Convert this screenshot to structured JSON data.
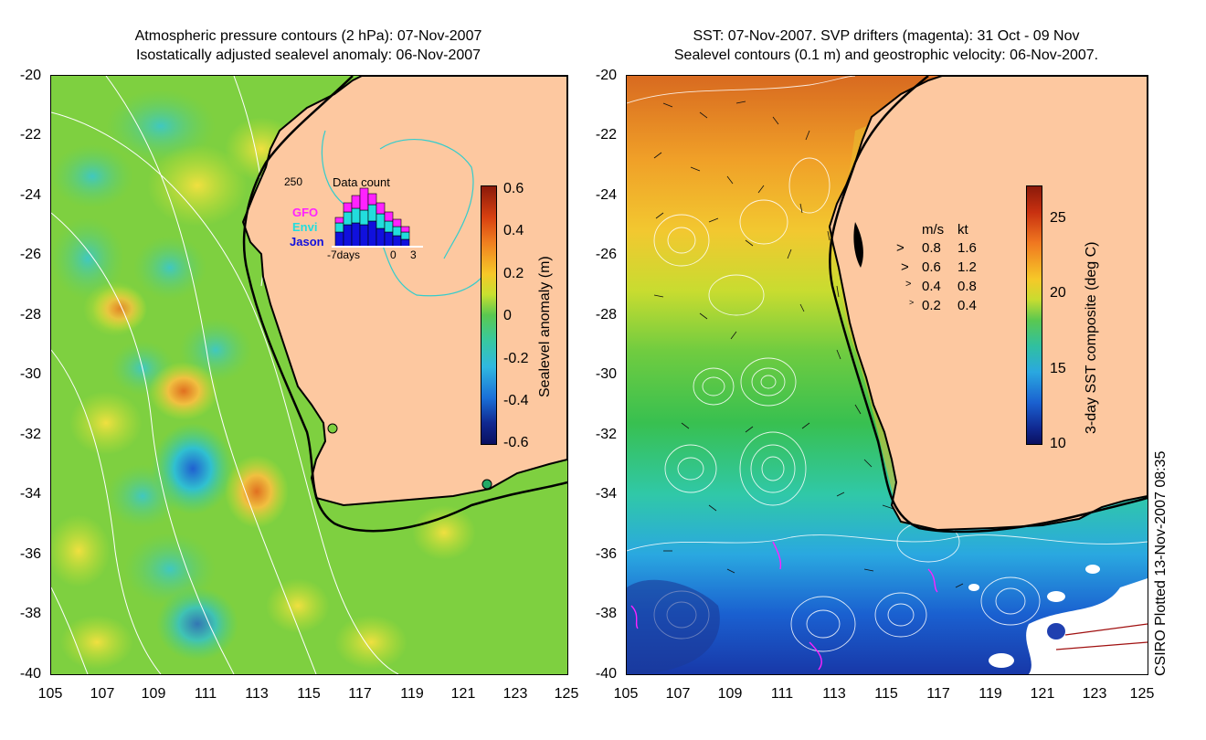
{
  "left": {
    "title_line1": "Atmospheric pressure contours (2 hPa): 07-Nov-2007",
    "title_line2": "Isostatically adjusted sealevel anomaly: 06-Nov-2007",
    "y_ticks": [
      "-20",
      "-22",
      "-24",
      "-26",
      "-28",
      "-30",
      "-32",
      "-34",
      "-36",
      "-38",
      "-40"
    ],
    "x_ticks": [
      "105",
      "107",
      "109",
      "111",
      "113",
      "115",
      "117",
      "119",
      "121",
      "123",
      "125"
    ],
    "colorbar": {
      "label": "Sealevel anomaly (m)",
      "ticks": [
        "0.6",
        "0.4",
        "0.2",
        "0",
        "-0.2",
        "-0.4",
        "-0.6"
      ],
      "range": [
        -0.6,
        0.6
      ]
    },
    "inset": {
      "title": "Data count",
      "ymax": "250",
      "x_left": "-7days",
      "x_zero": "0",
      "x_right": "3",
      "sat_gfo": "GFO",
      "sat_envi": "Envi",
      "sat_jason": "Jason",
      "colors": {
        "gfo": "#ff22ff",
        "envi": "#22dddd",
        "jason": "#1010dd"
      }
    }
  },
  "right": {
    "title_line1": "SST: 07-Nov-2007. SVP drifters (magenta): 31 Oct - 09 Nov",
    "title_line2": "Sealevel contours (0.1 m) and geostrophic velocity: 06-Nov-2007.",
    "y_ticks": [
      "-20",
      "-22",
      "-24",
      "-26",
      "-28",
      "-30",
      "-32",
      "-34",
      "-36",
      "-38",
      "-40"
    ],
    "x_ticks": [
      "105",
      "107",
      "109",
      "111",
      "113",
      "115",
      "117",
      "119",
      "121",
      "123",
      "125"
    ],
    "colorbar": {
      "label": "3-day SST composite (deg C)",
      "ticks": [
        "25",
        "20",
        "15",
        "10"
      ],
      "range": [
        10,
        27
      ]
    },
    "velocity_legend": {
      "header_ms": "m/s",
      "header_kt": "kt",
      "rows": [
        {
          "ms": "0.8",
          "kt": "1.6"
        },
        {
          "ms": "0.6",
          "kt": "1.2"
        },
        {
          "ms": "0.4",
          "kt": "0.8"
        },
        {
          "ms": "0.2",
          "kt": "0.4"
        }
      ]
    }
  },
  "footer": "CSIRO Plotted 13-Nov-2007 08:35",
  "colors": {
    "land": "#fdc8a0",
    "coast": "#000000",
    "contour": "#ffffff",
    "frame": "#000000"
  }
}
